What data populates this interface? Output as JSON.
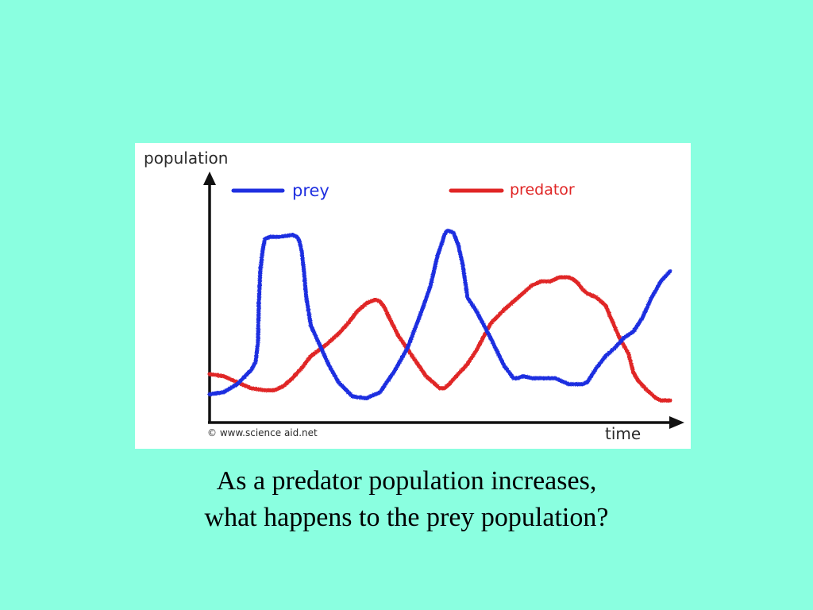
{
  "slide": {
    "background": "#8affe0",
    "caption_line1": "As a predator population increases,",
    "caption_line2": "what happens to the prey population?"
  },
  "chart_data": {
    "type": "line",
    "title": "",
    "ylabel": "population",
    "xlabel": "time",
    "copyright": "© www.science aid.net",
    "xlim": [
      0,
      100
    ],
    "ylim": [
      0,
      100
    ],
    "grid": false,
    "show_ticks": false,
    "legend_placement": "top",
    "series": [
      {
        "name": "prey",
        "color": "#1f2fe0",
        "x": [
          0,
          3,
          6,
          9,
          10,
          10.5,
          10.7,
          11,
          11.5,
          12,
          13,
          15,
          18,
          19,
          19.5,
          20,
          20.5,
          21,
          22,
          24,
          26,
          28,
          31,
          34,
          37,
          40,
          43,
          46,
          48,
          49,
          49.5,
          50,
          51,
          51.5,
          52,
          53,
          54,
          55,
          56,
          58,
          61,
          64,
          66,
          67,
          68,
          70,
          72,
          75,
          78,
          81,
          82,
          84,
          86,
          88,
          90,
          92,
          94,
          96,
          98,
          100
        ],
        "y": [
          14,
          15,
          19,
          26,
          30,
          40,
          60,
          75,
          85,
          91,
          92,
          92,
          93,
          92,
          90,
          85,
          75,
          62,
          48,
          38,
          28,
          20,
          13,
          12,
          15,
          25,
          37,
          55,
          68,
          78,
          83,
          86,
          93,
          95,
          95,
          94,
          88,
          78,
          62,
          55,
          42,
          28,
          22,
          22,
          23,
          22,
          22,
          22,
          19,
          19,
          20,
          27,
          33,
          37,
          42,
          45,
          52,
          62,
          70,
          75
        ]
      },
      {
        "name": "predator",
        "color": "#e02525",
        "x": [
          0,
          3,
          6,
          9,
          12,
          14,
          16,
          18,
          20,
          22,
          25,
          28,
          30,
          32,
          33,
          34,
          35,
          36,
          37,
          38,
          39,
          41,
          44,
          47,
          49,
          50,
          51,
          52,
          54,
          56,
          58,
          61,
          64,
          67,
          70,
          72,
          74,
          76,
          78,
          79,
          80,
          81,
          82,
          84,
          86,
          89,
          91,
          92,
          93,
          95,
          97,
          98,
          100
        ],
        "y": [
          24,
          23,
          20,
          17,
          16,
          16,
          18,
          22,
          27,
          33,
          38,
          44,
          49,
          55,
          57,
          59,
          60,
          61,
          60,
          57,
          52,
          43,
          33,
          23,
          19,
          17,
          17,
          19,
          24,
          29,
          36,
          49,
          56,
          62,
          68,
          70,
          70,
          72,
          72,
          71,
          69,
          66,
          64,
          62,
          58,
          42,
          34,
          25,
          21,
          16,
          12,
          11,
          11
        ]
      }
    ]
  }
}
